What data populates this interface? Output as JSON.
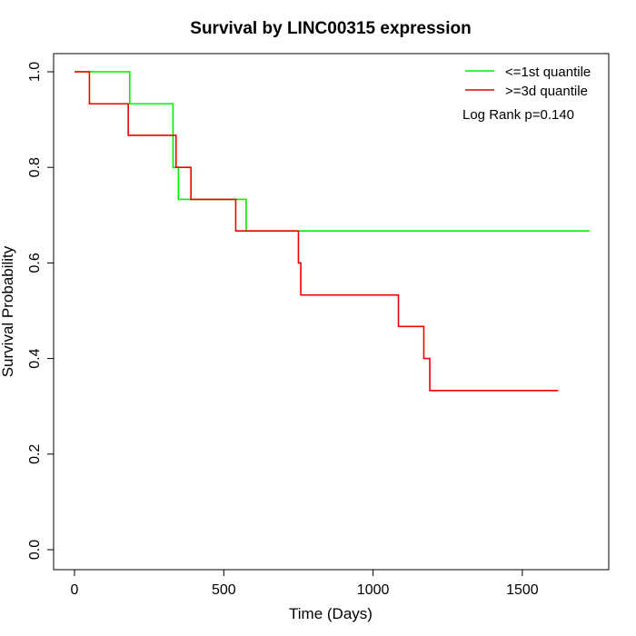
{
  "chart_data": {
    "type": "line",
    "subtype": "kaplan-meier-step",
    "title": "Survival by LINC00315 expression",
    "xlabel": "Time (Days)",
    "ylabel": "Survival Probability",
    "xlim": [
      0,
      1760
    ],
    "ylim": [
      0,
      1.0
    ],
    "x_ticks": [
      0,
      500,
      1000,
      1500
    ],
    "y_ticks": [
      0.0,
      0.2,
      0.4,
      0.6,
      0.8,
      1.0
    ],
    "y_tick_labels": [
      "0.0",
      "0.2",
      "0.4",
      "0.6",
      "0.8",
      "1.0"
    ],
    "grid": false,
    "legend_position": "top-right",
    "annotation": "Log Rank p=0.140",
    "series": [
      {
        "name": "<=1st quantile",
        "color": "#00ee00",
        "x": [
          0,
          185,
          330,
          348,
          575,
          1725
        ],
        "y": [
          1.0,
          0.933,
          0.8,
          0.733,
          0.667,
          0.667
        ]
      },
      {
        "name": ">=3d quantile",
        "color": "#ee0000",
        "x": [
          0,
          50,
          180,
          340,
          390,
          540,
          750,
          758,
          1085,
          1170,
          1190,
          1620
        ],
        "y": [
          1.0,
          0.933,
          0.867,
          0.8,
          0.733,
          0.667,
          0.6,
          0.533,
          0.467,
          0.4,
          0.333,
          0.333
        ]
      }
    ]
  }
}
